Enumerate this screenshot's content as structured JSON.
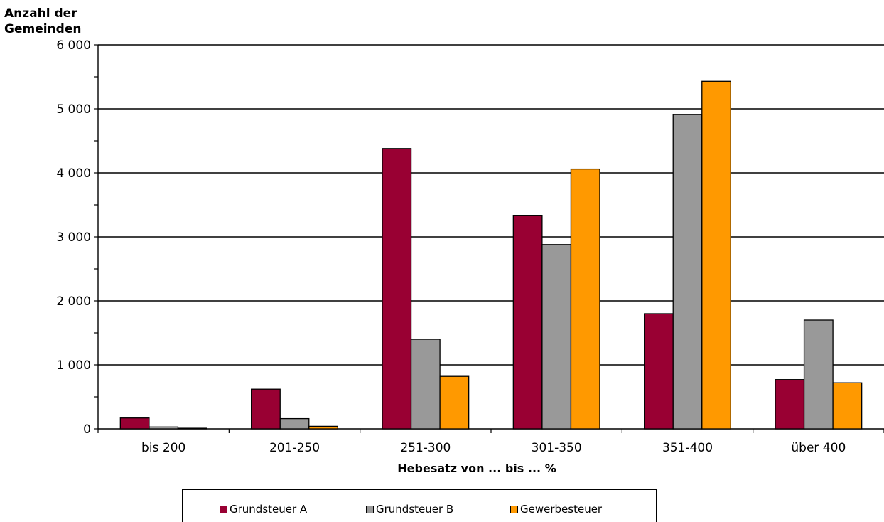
{
  "chart_data": {
    "type": "bar",
    "ylabel": "Anzahl der\nGemeinden",
    "xlabel": "Hebesatz von ... bis ... %",
    "categories": [
      "bis 200",
      "201-250",
      "251-300",
      "301-350",
      "351-400",
      "über 400"
    ],
    "series": [
      {
        "name": "Grundsteuer A",
        "color": "#990033",
        "values": [
          170,
          620,
          4380,
          3330,
          1800,
          770
        ]
      },
      {
        "name": "Grundsteuer B",
        "color": "#999999",
        "values": [
          30,
          160,
          1400,
          2880,
          4910,
          1700
        ]
      },
      {
        "name": "Gewerbesteuer",
        "color": "#FF9900",
        "values": [
          10,
          40,
          820,
          4060,
          5430,
          720
        ]
      }
    ],
    "ylim": [
      0,
      6000
    ],
    "yticks": [
      0,
      1000,
      2000,
      3000,
      4000,
      5000,
      6000
    ],
    "ytick_labels": [
      "0",
      "1 000",
      "2 000",
      "3 000",
      "4 000",
      "5 000",
      "6 000"
    ],
    "grid": true,
    "legend_position": "bottom"
  }
}
